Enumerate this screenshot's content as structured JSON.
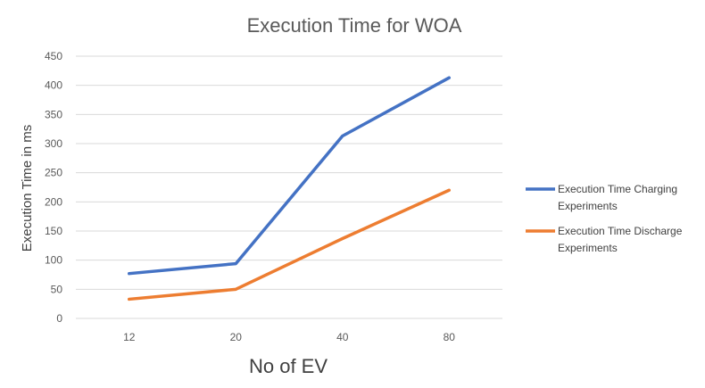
{
  "chart_data": {
    "type": "line",
    "title": "Execution Time for WOA",
    "xlabel": "No of EV",
    "ylabel": "Execution Time in ms",
    "categories": [
      "12",
      "20",
      "40",
      "80"
    ],
    "ylim": [
      0,
      450
    ],
    "yticks": [
      0,
      50,
      100,
      150,
      200,
      250,
      300,
      350,
      400,
      450
    ],
    "grid": true,
    "legend_position": "right",
    "series": [
      {
        "name": "Execution Time Charging Experiments",
        "legend_lines": [
          "Execution Time Charging",
          "Experiments"
        ],
        "values": [
          77,
          94,
          313,
          413
        ],
        "color": "#4472C4"
      },
      {
        "name": "Execution Time Discharge Experiments",
        "legend_lines": [
          "Execution Time Discharge",
          "Experiments"
        ],
        "values": [
          33,
          50,
          137,
          220
        ],
        "color": "#ED7D31"
      }
    ]
  }
}
